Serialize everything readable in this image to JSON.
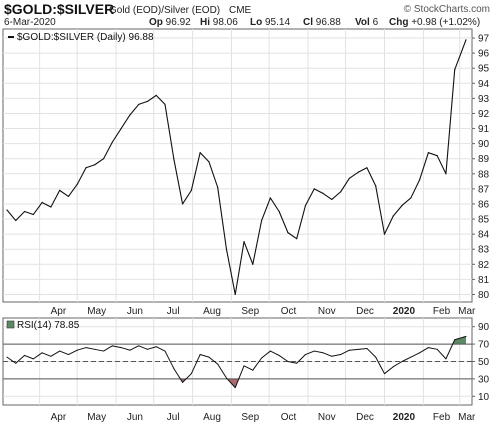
{
  "header": {
    "symbol": "$GOLD:$SILVER",
    "description": "Gold (EOD)/Silver (EOD)",
    "exchange": "CME",
    "copyright": "© StockCharts.com",
    "date": "6-Mar-2020",
    "stats": [
      {
        "label": "Op",
        "value": "96.92"
      },
      {
        "label": "Hi",
        "value": "98.06"
      },
      {
        "label": "Lo",
        "value": "95.14"
      },
      {
        "label": "Cl",
        "value": "96.88"
      },
      {
        "label": "Vol",
        "value": "6"
      },
      {
        "label": "Chg",
        "value": "+0.98 (+1.02%)"
      }
    ]
  },
  "chart_data": [
    {
      "type": "line",
      "legend": "$GOLD:$SILVER (Daily) 96.88",
      "legend_placement": "top-left",
      "grid": true,
      "ylim": [
        79.5,
        97.6
      ],
      "yticks": [
        80,
        81,
        82,
        83,
        84,
        85,
        86,
        87,
        88,
        89,
        90,
        91,
        92,
        93,
        94,
        95,
        96,
        97
      ],
      "x_start": "2019-03-06",
      "x_end": "2020-03-06",
      "months": [
        {
          "label": "Apr",
          "date": "2019-04-01",
          "bold": false
        },
        {
          "label": "May",
          "date": "2019-05-01",
          "bold": false
        },
        {
          "label": "Jun",
          "date": "2019-06-01",
          "bold": false
        },
        {
          "label": "Jul",
          "date": "2019-07-01",
          "bold": false
        },
        {
          "label": "Aug",
          "date": "2019-08-01",
          "bold": false
        },
        {
          "label": "Sep",
          "date": "2019-09-01",
          "bold": false
        },
        {
          "label": "Oct",
          "date": "2019-10-01",
          "bold": false
        },
        {
          "label": "Nov",
          "date": "2019-11-01",
          "bold": false
        },
        {
          "label": "Dec",
          "date": "2019-12-01",
          "bold": false
        },
        {
          "label": "2020",
          "date": "2020-01-01",
          "bold": true
        },
        {
          "label": "Feb",
          "date": "2020-02-01",
          "bold": false
        },
        {
          "label": "Mar",
          "date": "2020-03-01",
          "bold": false
        }
      ],
      "series": [
        {
          "x": [
            "2019-03-06",
            "2019-03-13",
            "2019-03-20",
            "2019-03-27",
            "2019-04-03",
            "2019-04-10",
            "2019-04-17",
            "2019-04-24",
            "2019-05-01",
            "2019-05-08",
            "2019-05-15",
            "2019-05-22",
            "2019-05-29",
            "2019-06-05",
            "2019-06-12",
            "2019-06-19",
            "2019-06-26",
            "2019-07-03",
            "2019-07-10",
            "2019-07-17",
            "2019-07-24",
            "2019-07-31",
            "2019-08-07",
            "2019-08-14",
            "2019-08-21",
            "2019-08-28",
            "2019-09-04",
            "2019-09-11",
            "2019-09-18",
            "2019-09-25",
            "2019-10-02",
            "2019-10-09",
            "2019-10-16",
            "2019-10-23",
            "2019-10-30",
            "2019-11-06",
            "2019-11-13",
            "2019-11-20",
            "2019-11-27",
            "2019-12-04",
            "2019-12-11",
            "2019-12-18",
            "2019-12-25",
            "2020-01-01",
            "2020-01-08",
            "2020-01-15",
            "2020-01-22",
            "2020-01-29",
            "2020-02-05",
            "2020-02-12",
            "2020-02-19",
            "2020-02-26",
            "2020-03-06"
          ],
          "values": [
            85.6,
            84.9,
            85.5,
            85.3,
            86.1,
            85.8,
            86.9,
            86.5,
            87.3,
            88.4,
            88.6,
            89.0,
            90.1,
            91.0,
            91.9,
            92.6,
            92.8,
            93.2,
            92.6,
            89.0,
            86.0,
            86.9,
            89.4,
            88.8,
            87.1,
            83.0,
            80.0,
            83.5,
            82.0,
            84.9,
            86.4,
            85.5,
            84.1,
            83.7,
            85.9,
            87.0,
            86.7,
            86.3,
            86.8,
            87.7,
            88.1,
            88.4,
            87.2,
            84.0,
            85.2,
            85.9,
            86.4,
            87.6,
            89.4,
            89.2,
            88.0,
            94.9,
            96.88
          ]
        }
      ]
    },
    {
      "type": "line",
      "legend": "RSI(14) 78.85",
      "legend_placement": "top-left",
      "grid": true,
      "ylim": [
        0,
        100
      ],
      "yticks": [
        10,
        30,
        50,
        70,
        90
      ],
      "reference_lines": [
        30,
        50,
        70
      ],
      "overbought_color": "#5b8a64",
      "oversold_color": "#a86a6a",
      "series": [
        {
          "x": [
            "2019-03-06",
            "2019-03-13",
            "2019-03-20",
            "2019-03-27",
            "2019-04-03",
            "2019-04-10",
            "2019-04-17",
            "2019-04-24",
            "2019-05-01",
            "2019-05-08",
            "2019-05-15",
            "2019-05-22",
            "2019-05-29",
            "2019-06-05",
            "2019-06-12",
            "2019-06-19",
            "2019-06-26",
            "2019-07-03",
            "2019-07-10",
            "2019-07-17",
            "2019-07-24",
            "2019-07-31",
            "2019-08-07",
            "2019-08-14",
            "2019-08-21",
            "2019-08-28",
            "2019-09-04",
            "2019-09-11",
            "2019-09-18",
            "2019-09-25",
            "2019-10-02",
            "2019-10-09",
            "2019-10-16",
            "2019-10-23",
            "2019-10-30",
            "2019-11-06",
            "2019-11-13",
            "2019-11-20",
            "2019-11-27",
            "2019-12-04",
            "2019-12-11",
            "2019-12-18",
            "2019-12-25",
            "2020-01-01",
            "2020-01-08",
            "2020-01-15",
            "2020-01-22",
            "2020-01-29",
            "2020-02-05",
            "2020-02-12",
            "2020-02-19",
            "2020-02-26",
            "2020-03-06"
          ],
          "values": [
            55,
            48,
            57,
            53,
            60,
            56,
            62,
            58,
            63,
            66,
            64,
            62,
            68,
            66,
            63,
            68,
            64,
            67,
            62,
            42,
            26,
            36,
            58,
            55,
            47,
            31,
            20,
            45,
            40,
            54,
            62,
            57,
            50,
            48,
            58,
            62,
            60,
            56,
            58,
            63,
            64,
            65,
            55,
            36,
            44,
            50,
            55,
            60,
            66,
            64,
            53,
            75,
            78.85
          ]
        }
      ]
    }
  ]
}
